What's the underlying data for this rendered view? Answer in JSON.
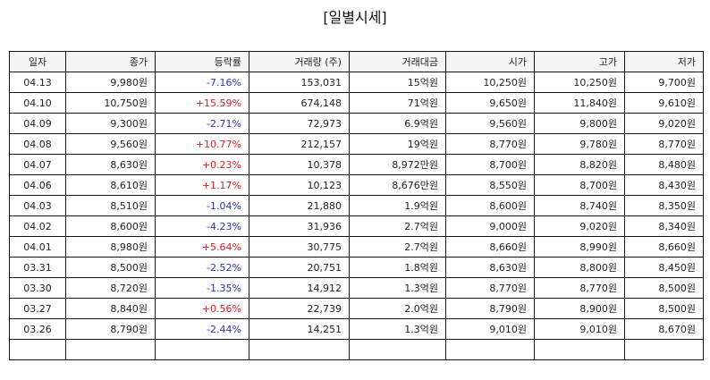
{
  "title": "[일별시세]",
  "columns": [
    "일자",
    "종가",
    "등락률",
    "거래량 (주)",
    "거래대금",
    "시가",
    "고가",
    "저가"
  ],
  "rows": [
    {
      "date": "04.13",
      "close": "9,980원",
      "change": "-7.16%",
      "direction": "down",
      "volume": "153,031",
      "amount": "15억원",
      "open": "10,250원",
      "high": "10,250원",
      "low": "9,700원"
    },
    {
      "date": "04.10",
      "close": "10,750원",
      "change": "+15.59%",
      "direction": "up",
      "volume": "674,148",
      "amount": "71억원",
      "open": "9,650원",
      "high": "11,840원",
      "low": "9,610원"
    },
    {
      "date": "04.09",
      "close": "9,300원",
      "change": "-2.71%",
      "direction": "down",
      "volume": "72,973",
      "amount": "6.9억원",
      "open": "9,560원",
      "high": "9,800원",
      "low": "9,020원"
    },
    {
      "date": "04.08",
      "close": "9,560원",
      "change": "+10.77%",
      "direction": "up",
      "volume": "212,157",
      "amount": "19억원",
      "open": "8,770원",
      "high": "9,780원",
      "low": "8,770원"
    },
    {
      "date": "04.07",
      "close": "8,630원",
      "change": "+0.23%",
      "direction": "up",
      "volume": "10,378",
      "amount": "8,972만원",
      "open": "8,700원",
      "high": "8,820원",
      "low": "8,480원"
    },
    {
      "date": "04.06",
      "close": "8,610원",
      "change": "+1.17%",
      "direction": "up",
      "volume": "10,123",
      "amount": "8,676만원",
      "open": "8,550원",
      "high": "8,700원",
      "low": "8,430원"
    },
    {
      "date": "04.03",
      "close": "8,510원",
      "change": "-1.04%",
      "direction": "down",
      "volume": "21,880",
      "amount": "1.9억원",
      "open": "8,600원",
      "high": "8,740원",
      "low": "8,350원"
    },
    {
      "date": "04.02",
      "close": "8,600원",
      "change": "-4.23%",
      "direction": "down",
      "volume": "31,936",
      "amount": "2.7억원",
      "open": "9,000원",
      "high": "9,020원",
      "low": "8,340원"
    },
    {
      "date": "04.01",
      "close": "8,980원",
      "change": "+5.64%",
      "direction": "up",
      "volume": "30,775",
      "amount": "2.7억원",
      "open": "8,660원",
      "high": "8,990원",
      "low": "8,660원"
    },
    {
      "date": "03.31",
      "close": "8,500원",
      "change": "-2.52%",
      "direction": "down",
      "volume": "20,751",
      "amount": "1.8억원",
      "open": "8,630원",
      "high": "8,800원",
      "low": "8,450원"
    },
    {
      "date": "03.30",
      "close": "8,720원",
      "change": "-1.35%",
      "direction": "down",
      "volume": "14,912",
      "amount": "1.3억원",
      "open": "8,770원",
      "high": "8,770원",
      "low": "8,500원"
    },
    {
      "date": "03.27",
      "close": "8,840원",
      "change": "+0.56%",
      "direction": "up",
      "volume": "22,739",
      "amount": "2.0억원",
      "open": "8,790원",
      "high": "8,900원",
      "low": "8,500원"
    },
    {
      "date": "03.26",
      "close": "8,790원",
      "change": "-2.44%",
      "direction": "down",
      "volume": "14,251",
      "amount": "1.3억원",
      "open": "9,010원",
      "high": "9,010원",
      "low": "8,670원"
    },
    {
      "date": "",
      "close": "",
      "change": "",
      "direction": "",
      "volume": "",
      "amount": "",
      "open": "",
      "high": "",
      "low": ""
    }
  ],
  "colors": {
    "up": "#d92020",
    "down": "#2a35b0"
  }
}
